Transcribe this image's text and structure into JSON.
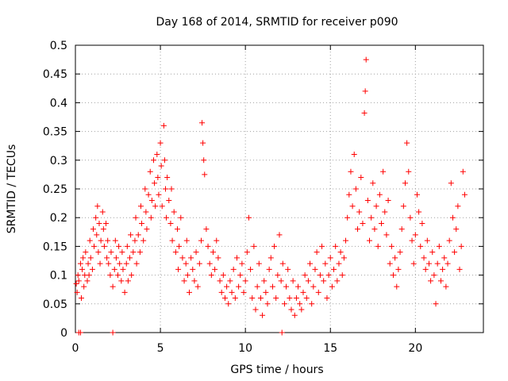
{
  "chart_data": {
    "type": "scatter",
    "title": "Day 168 of 2014, SRMTID for receiver p090",
    "xlabel": "GPS time / hours",
    "ylabel": "SRMTID / TECUs",
    "xlim": [
      0,
      24
    ],
    "ylim": [
      0,
      0.5
    ],
    "x_ticks": [
      0,
      5,
      10,
      15,
      20
    ],
    "x_tick_labels": [
      "0",
      "5",
      "10",
      "15",
      "20"
    ],
    "y_ticks": [
      0,
      0.05,
      0.1,
      0.15,
      0.2,
      0.25,
      0.3,
      0.35,
      0.4,
      0.45,
      0.5
    ],
    "y_tick_labels": [
      "0",
      "0.05",
      "0.1",
      "0.15",
      "0.2",
      "0.25",
      "0.3",
      "0.35",
      "0.4",
      "0.45",
      "0.5"
    ],
    "grid": true,
    "marker": "+",
    "color": "#ff0000",
    "series": [
      {
        "name": "SRMTID",
        "points": [
          [
            0.05,
            0.085
          ],
          [
            0.1,
            0.07
          ],
          [
            0.15,
            0.1
          ],
          [
            0.2,
            0.09
          ],
          [
            0.3,
            0.12
          ],
          [
            0.35,
            0.06
          ],
          [
            0.4,
            0.11
          ],
          [
            0.45,
            0.13
          ],
          [
            0.5,
            0.08
          ],
          [
            0.55,
            0.1
          ],
          [
            0.6,
            0.14
          ],
          [
            0.7,
            0.09
          ],
          [
            0.75,
            0.12
          ],
          [
            0.8,
            0.1
          ],
          [
            0.85,
            0.16
          ],
          [
            0.9,
            0.13
          ],
          [
            1.0,
            0.11
          ],
          [
            1.05,
            0.18
          ],
          [
            1.1,
            0.15
          ],
          [
            1.2,
            0.2
          ],
          [
            1.25,
            0.17
          ],
          [
            1.3,
            0.22
          ],
          [
            1.35,
            0.14
          ],
          [
            1.4,
            0.19
          ],
          [
            1.45,
            0.12
          ],
          [
            1.5,
            0.16
          ],
          [
            1.6,
            0.21
          ],
          [
            1.65,
            0.18
          ],
          [
            1.7,
            0.15
          ],
          [
            1.8,
            0.19
          ],
          [
            1.85,
            0.13
          ],
          [
            1.9,
            0.16
          ],
          [
            1.95,
            0.12
          ],
          [
            2.05,
            0.1
          ],
          [
            2.1,
            0.14
          ],
          [
            2.2,
            0.08
          ],
          [
            2.3,
            0.11
          ],
          [
            2.35,
            0.16
          ],
          [
            2.4,
            0.13
          ],
          [
            2.5,
            0.1
          ],
          [
            2.55,
            0.15
          ],
          [
            2.6,
            0.12
          ],
          [
            2.7,
            0.09
          ],
          [
            2.75,
            0.14
          ],
          [
            2.8,
            0.11
          ],
          [
            2.9,
            0.07
          ],
          [
            3.0,
            0.12
          ],
          [
            3.05,
            0.15
          ],
          [
            3.1,
            0.09
          ],
          [
            3.2,
            0.13
          ],
          [
            3.25,
            0.17
          ],
          [
            3.3,
            0.1
          ],
          [
            3.4,
            0.14
          ],
          [
            3.5,
            0.16
          ],
          [
            3.55,
            0.2
          ],
          [
            3.6,
            0.12
          ],
          [
            3.7,
            0.17
          ],
          [
            3.8,
            0.14
          ],
          [
            3.85,
            0.22
          ],
          [
            3.9,
            0.19
          ],
          [
            4.0,
            0.16
          ],
          [
            4.1,
            0.25
          ],
          [
            4.15,
            0.21
          ],
          [
            4.2,
            0.18
          ],
          [
            4.3,
            0.24
          ],
          [
            4.4,
            0.28
          ],
          [
            4.45,
            0.2
          ],
          [
            4.5,
            0.23
          ],
          [
            4.6,
            0.3
          ],
          [
            4.65,
            0.26
          ],
          [
            4.7,
            0.22
          ],
          [
            4.8,
            0.31
          ],
          [
            4.85,
            0.27
          ],
          [
            4.9,
            0.24
          ],
          [
            5.0,
            0.33
          ],
          [
            5.05,
            0.29
          ],
          [
            5.1,
            0.22
          ],
          [
            5.2,
            0.36
          ],
          [
            5.25,
            0.3
          ],
          [
            5.3,
            0.25
          ],
          [
            5.35,
            0.2
          ],
          [
            5.4,
            0.27
          ],
          [
            5.5,
            0.23
          ],
          [
            5.6,
            0.19
          ],
          [
            5.65,
            0.25
          ],
          [
            5.7,
            0.16
          ],
          [
            5.8,
            0.21
          ],
          [
            5.9,
            0.14
          ],
          [
            6.0,
            0.18
          ],
          [
            6.05,
            0.11
          ],
          [
            6.1,
            0.15
          ],
          [
            6.2,
            0.2
          ],
          [
            6.3,
            0.13
          ],
          [
            6.4,
            0.09
          ],
          [
            6.5,
            0.12
          ],
          [
            6.55,
            0.16
          ],
          [
            6.6,
            0.1
          ],
          [
            6.7,
            0.07
          ],
          [
            6.8,
            0.13
          ],
          [
            6.9,
            0.11
          ],
          [
            7.0,
            0.09
          ],
          [
            7.1,
            0.14
          ],
          [
            7.2,
            0.08
          ],
          [
            7.3,
            0.12
          ],
          [
            7.4,
            0.16
          ],
          [
            7.45,
            0.365
          ],
          [
            7.5,
            0.33
          ],
          [
            7.55,
            0.3
          ],
          [
            7.6,
            0.275
          ],
          [
            7.7,
            0.18
          ],
          [
            7.8,
            0.15
          ],
          [
            7.9,
            0.12
          ],
          [
            8.0,
            0.1
          ],
          [
            8.1,
            0.14
          ],
          [
            8.2,
            0.11
          ],
          [
            8.3,
            0.16
          ],
          [
            8.4,
            0.13
          ],
          [
            8.5,
            0.09
          ],
          [
            8.6,
            0.07
          ],
          [
            8.7,
            0.1
          ],
          [
            8.8,
            0.06
          ],
          [
            8.9,
            0.08
          ],
          [
            9.0,
            0.05
          ],
          [
            9.1,
            0.09
          ],
          [
            9.2,
            0.07
          ],
          [
            9.3,
            0.11
          ],
          [
            9.4,
            0.06
          ],
          [
            9.5,
            0.13
          ],
          [
            9.6,
            0.08
          ],
          [
            9.7,
            0.1
          ],
          [
            9.8,
            0.12
          ],
          [
            9.9,
            0.07
          ],
          [
            10.0,
            0.09
          ],
          [
            10.1,
            0.14
          ],
          [
            10.2,
            0.2
          ],
          [
            10.3,
            0.11
          ],
          [
            10.4,
            0.06
          ],
          [
            10.5,
            0.15
          ],
          [
            10.6,
            0.04
          ],
          [
            10.7,
            0.08
          ],
          [
            10.8,
            0.12
          ],
          [
            10.9,
            0.06
          ],
          [
            11.0,
            0.03
          ],
          [
            11.1,
            0.09
          ],
          [
            11.2,
            0.07
          ],
          [
            11.3,
            0.05
          ],
          [
            11.4,
            0.11
          ],
          [
            11.5,
            0.13
          ],
          [
            11.6,
            0.08
          ],
          [
            11.7,
            0.15
          ],
          [
            11.8,
            0.06
          ],
          [
            11.9,
            0.1
          ],
          [
            12.0,
            0.17
          ],
          [
            12.1,
            0.09
          ],
          [
            12.2,
            0.12
          ],
          [
            12.3,
            0.05
          ],
          [
            12.4,
            0.08
          ],
          [
            12.5,
            0.11
          ],
          [
            12.6,
            0.06
          ],
          [
            12.7,
            0.04
          ],
          [
            12.8,
            0.09
          ],
          [
            12.9,
            0.03
          ],
          [
            13.0,
            0.06
          ],
          [
            13.1,
            0.08
          ],
          [
            13.2,
            0.05
          ],
          [
            13.3,
            0.04
          ],
          [
            13.4,
            0.07
          ],
          [
            13.5,
            0.1
          ],
          [
            13.6,
            0.06
          ],
          [
            13.7,
            0.09
          ],
          [
            13.8,
            0.12
          ],
          [
            13.9,
            0.05
          ],
          [
            14.0,
            0.08
          ],
          [
            14.1,
            0.11
          ],
          [
            14.2,
            0.14
          ],
          [
            14.3,
            0.07
          ],
          [
            14.4,
            0.1
          ],
          [
            14.5,
            0.15
          ],
          [
            14.6,
            0.09
          ],
          [
            14.7,
            0.12
          ],
          [
            14.8,
            0.06
          ],
          [
            14.9,
            0.1
          ],
          [
            15.0,
            0.13
          ],
          [
            15.1,
            0.08
          ],
          [
            15.2,
            0.11
          ],
          [
            15.3,
            0.15
          ],
          [
            15.4,
            0.09
          ],
          [
            15.5,
            0.12
          ],
          [
            15.6,
            0.14
          ],
          [
            15.7,
            0.1
          ],
          [
            15.8,
            0.13
          ],
          [
            15.9,
            0.16
          ],
          [
            16.0,
            0.2
          ],
          [
            16.1,
            0.24
          ],
          [
            16.2,
            0.28
          ],
          [
            16.3,
            0.22
          ],
          [
            16.4,
            0.31
          ],
          [
            16.5,
            0.25
          ],
          [
            16.6,
            0.18
          ],
          [
            16.7,
            0.21
          ],
          [
            16.8,
            0.27
          ],
          [
            16.9,
            0.19
          ],
          [
            17.0,
            0.382
          ],
          [
            17.05,
            0.42
          ],
          [
            17.1,
            0.475
          ],
          [
            17.2,
            0.23
          ],
          [
            17.3,
            0.16
          ],
          [
            17.4,
            0.2
          ],
          [
            17.5,
            0.26
          ],
          [
            17.6,
            0.18
          ],
          [
            17.7,
            0.22
          ],
          [
            17.8,
            0.15
          ],
          [
            17.9,
            0.24
          ],
          [
            18.0,
            0.19
          ],
          [
            18.1,
            0.28
          ],
          [
            18.2,
            0.21
          ],
          [
            18.3,
            0.17
          ],
          [
            18.4,
            0.23
          ],
          [
            18.5,
            0.12
          ],
          [
            18.6,
            0.15
          ],
          [
            18.7,
            0.1
          ],
          [
            18.8,
            0.13
          ],
          [
            18.9,
            0.08
          ],
          [
            19.0,
            0.11
          ],
          [
            19.1,
            0.14
          ],
          [
            19.2,
            0.18
          ],
          [
            19.3,
            0.22
          ],
          [
            19.4,
            0.26
          ],
          [
            19.5,
            0.33
          ],
          [
            19.6,
            0.28
          ],
          [
            19.7,
            0.2
          ],
          [
            19.8,
            0.16
          ],
          [
            19.9,
            0.12
          ],
          [
            20.0,
            0.17
          ],
          [
            20.1,
            0.24
          ],
          [
            20.2,
            0.21
          ],
          [
            20.3,
            0.15
          ],
          [
            20.4,
            0.19
          ],
          [
            20.5,
            0.13
          ],
          [
            20.6,
            0.11
          ],
          [
            20.7,
            0.16
          ],
          [
            20.8,
            0.12
          ],
          [
            20.9,
            0.09
          ],
          [
            21.0,
            0.14
          ],
          [
            21.1,
            0.1
          ],
          [
            21.2,
            0.05
          ],
          [
            21.3,
            0.12
          ],
          [
            21.4,
            0.15
          ],
          [
            21.5,
            0.09
          ],
          [
            21.6,
            0.11
          ],
          [
            21.7,
            0.13
          ],
          [
            21.8,
            0.08
          ],
          [
            21.9,
            0.12
          ],
          [
            22.0,
            0.16
          ],
          [
            22.1,
            0.26
          ],
          [
            22.2,
            0.2
          ],
          [
            22.3,
            0.14
          ],
          [
            22.4,
            0.18
          ],
          [
            22.5,
            0.22
          ],
          [
            22.6,
            0.11
          ],
          [
            22.7,
            0.15
          ],
          [
            22.8,
            0.28
          ],
          [
            22.9,
            0.24
          ]
        ]
      }
    ],
    "zero_points": [
      [
        0.2,
        0
      ],
      [
        0.3,
        0
      ],
      [
        2.2,
        0
      ],
      [
        12.15,
        0
      ]
    ]
  }
}
